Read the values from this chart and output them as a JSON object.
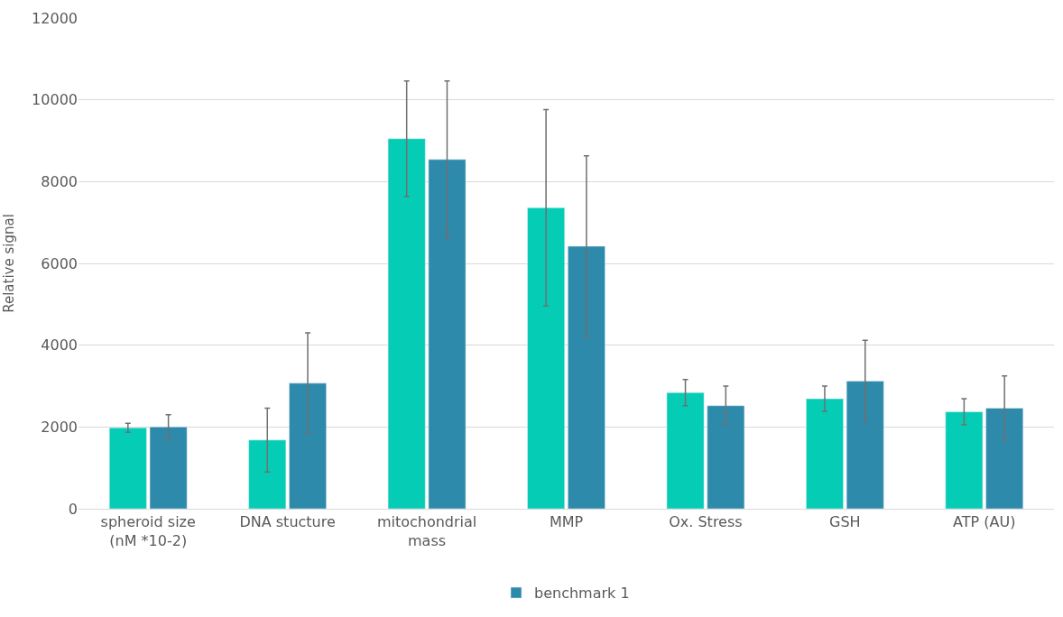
{
  "chart_data": {
    "type": "bar",
    "ylabel": "Relative signal",
    "categories": [
      "spheroid size\n(nM *10-2)",
      "DNA stucture",
      "mitochondrial\nmass",
      "MMP",
      "Ox. Stress",
      "GSH",
      "ATP (AU)"
    ],
    "series": [
      {
        "color": "#05cdb5",
        "values": [
          1980,
          1680,
          9050,
          7360,
          2840,
          2690,
          2370
        ],
        "errors": [
          110,
          780,
          1410,
          2400,
          320,
          310,
          320
        ]
      },
      {
        "name": "benchmark 1",
        "color": "#2e8aab",
        "values": [
          2000,
          3070,
          8540,
          6420,
          2520,
          3120,
          2460
        ],
        "errors": [
          300,
          1230,
          1920,
          2210,
          480,
          1000,
          790
        ]
      }
    ],
    "ylim": [
      0,
      12000
    ],
    "yticks": [
      0,
      2000,
      4000,
      6000,
      8000,
      10000,
      12000
    ],
    "grid": "y",
    "legend": "bottom"
  }
}
